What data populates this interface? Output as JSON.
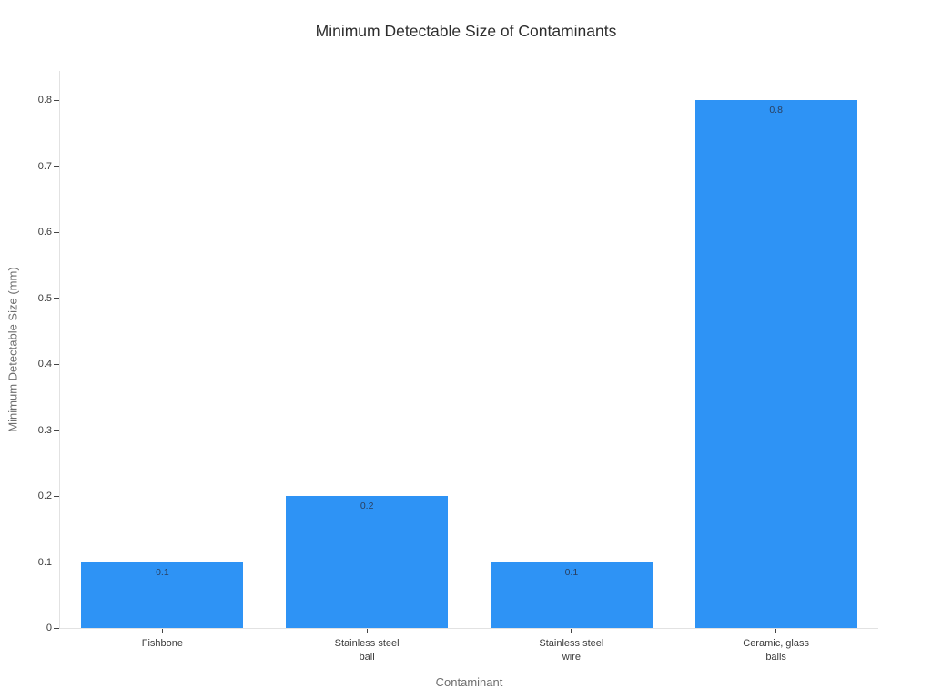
{
  "chart_data": {
    "type": "bar",
    "title": "Minimum Detectable Size of Contaminants",
    "xlabel": "Contaminant",
    "ylabel": "Minimum Detectable Size (mm)",
    "categories": [
      "Fishbone",
      "Stainless steel\nball",
      "Stainless steel\nwire",
      "Ceramic, glass\nballs"
    ],
    "values": [
      0.1,
      0.2,
      0.1,
      0.8
    ],
    "value_labels": [
      "0.1",
      "0.2",
      "0.1",
      "0.8"
    ],
    "yticks": [
      0,
      0.1,
      0.2,
      0.3,
      0.4,
      0.5,
      0.6,
      0.7,
      0.8
    ],
    "ytick_labels": [
      "0",
      "0.1",
      "0.2",
      "0.3",
      "0.4",
      "0.5",
      "0.6",
      "0.7",
      "0.8"
    ],
    "ylim": [
      0,
      0.845
    ],
    "grid": false,
    "legend": false,
    "bar_color": "#2E93F5",
    "background_color": "#ffffff"
  }
}
